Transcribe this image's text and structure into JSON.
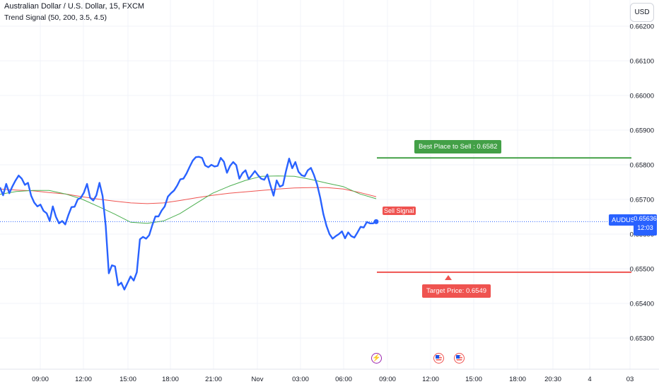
{
  "header": {
    "title": "Australian Dollar / U.S. Dollar, 15, FXCM",
    "indicator": "Trend Signal (50, 200, 3.5, 4.5)"
  },
  "currency_button": "USD",
  "price_label": {
    "symbol": "AUDUSD",
    "price": "0.65636",
    "countdown": "12:03"
  },
  "annotations": {
    "sell_place": "Best Place to Sell : 0.6582",
    "target": "Target Price: 0.6549",
    "signal": "Sell Signal"
  },
  "events": [
    "lightning-icon",
    "us-flag-icon",
    "us-flag-icon"
  ],
  "colors": {
    "price_line": "#2962ff",
    "ma_fast": "#4caf50",
    "ma_slow": "#ef5350",
    "sell_line": "#43a047",
    "target_line": "#ef5350",
    "badge": "#2962ff"
  },
  "chart_data": {
    "type": "line",
    "ylim": [
      0.6525,
      0.6624
    ],
    "y_ticks": [
      "0.65300",
      "0.65400",
      "0.65500",
      "0.65600",
      "0.65700",
      "0.65800",
      "0.65900",
      "0.66000",
      "0.66100",
      "0.66200"
    ],
    "x_tick_labels": [
      "09:00",
      "12:00",
      "15:00",
      "18:00",
      "21:00",
      "Nov",
      "03:00",
      "06:00",
      "09:00",
      "12:00",
      "15:00",
      "18:00",
      "20:30",
      "4",
      "03"
    ],
    "current_price": 0.65636,
    "levels": {
      "sell": 0.6582,
      "target": 0.6549
    },
    "grid": true,
    "series": [
      {
        "values": [
          0.65735,
          0.65712,
          0.65745,
          0.65718,
          0.65738,
          0.65755,
          0.65769,
          0.6576,
          0.65742,
          0.65748,
          0.65711,
          0.65691,
          0.6568,
          0.65685,
          0.65667,
          0.6566,
          0.65638,
          0.6568,
          0.6565,
          0.65631,
          0.65638,
          0.65628,
          0.65655,
          0.65678,
          0.65679,
          0.657,
          0.65705,
          0.6572,
          0.65745,
          0.65705,
          0.65697,
          0.65712,
          0.65748,
          0.6571,
          0.65624,
          0.65487,
          0.6551,
          0.65507,
          0.65452,
          0.6546,
          0.6544,
          0.65459,
          0.65478,
          0.65466,
          0.6549,
          0.65585,
          0.65592,
          0.65587,
          0.65597,
          0.65626,
          0.65651,
          0.65651,
          0.65668,
          0.6568,
          0.65708,
          0.65718,
          0.65726,
          0.6574,
          0.65758,
          0.6576,
          0.65775,
          0.65794,
          0.65812,
          0.65822,
          0.65823,
          0.6582,
          0.65798,
          0.65793,
          0.658,
          0.65795,
          0.65797,
          0.6582,
          0.65809,
          0.65777,
          0.65797,
          0.65808,
          0.65799,
          0.6576,
          0.65776,
          0.65784,
          0.65759,
          0.6577,
          0.65782,
          0.6577,
          0.6576,
          0.65757,
          0.65772,
          0.6574,
          0.65711,
          0.65755,
          0.65737,
          0.65741,
          0.65782,
          0.65818,
          0.6579,
          0.65808,
          0.6578,
          0.6577,
          0.65767,
          0.65784,
          0.65791,
          0.6577,
          0.65743,
          0.65705,
          0.65658,
          0.65624,
          0.656,
          0.65587,
          0.65594,
          0.656,
          0.65608,
          0.65588,
          0.65605,
          0.65594,
          0.6559,
          0.65605,
          0.65621,
          0.65619,
          0.65635,
          0.65631,
          0.65631,
          0.65636
        ]
      },
      {
        "values": [
          0.65715,
          0.65723,
          0.65726,
          0.65726,
          0.65716,
          0.65701,
          0.6568,
          0.65658,
          0.65634,
          0.65631,
          0.65638,
          0.65659,
          0.65689,
          0.65718,
          0.65738,
          0.65755,
          0.65767,
          0.65768,
          0.65767,
          0.65758,
          0.65747,
          0.65737,
          0.65716,
          0.65702
        ]
      },
      {
        "values": [
          0.6573,
          0.65727,
          0.65725,
          0.6572,
          0.65716,
          0.65708,
          0.65701,
          0.65695,
          0.6569,
          0.65688,
          0.6569,
          0.65697,
          0.65705,
          0.65712,
          0.65718,
          0.65722,
          0.65726,
          0.6573,
          0.65733,
          0.65734,
          0.65734,
          0.6573,
          0.6572,
          0.65708
        ]
      }
    ]
  }
}
